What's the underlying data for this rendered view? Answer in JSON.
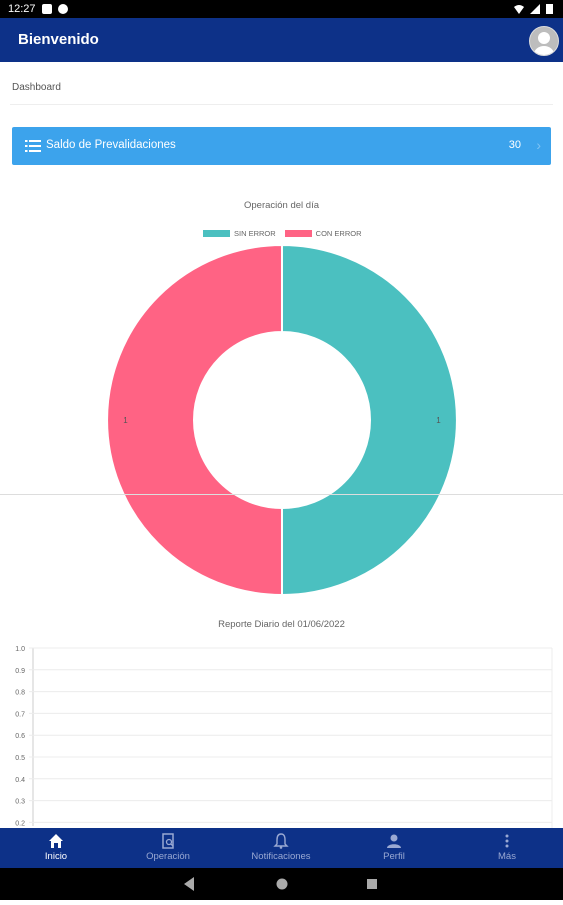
{
  "status_bar": {
    "time": "12:27"
  },
  "appbar": {
    "title": "Bienvenido"
  },
  "breadcrumb": "Dashboard",
  "summary_card": {
    "label": "Saldo de Prevalidaciones",
    "count": "30"
  },
  "chart_data": [
    {
      "type": "pie",
      "title": "Operación del día",
      "categories": [
        "SIN ERROR",
        "CON ERROR"
      ],
      "values": [
        1,
        1
      ],
      "colors": [
        "#4bc0c0",
        "#ff6384"
      ],
      "legend_placement": "top"
    },
    {
      "type": "bar",
      "title": "Reporte Diario del 01/06/2022",
      "categories": [],
      "values": [],
      "yticks": [
        "1.0",
        "0.9",
        "0.8",
        "0.7",
        "0.6",
        "0.5",
        "0.4",
        "0.3",
        "0.2"
      ],
      "ylim": [
        0,
        1.0
      ],
      "grid": true
    }
  ],
  "bottom_nav": {
    "items": [
      {
        "label": "Inicio",
        "icon": "home-icon",
        "active": true
      },
      {
        "label": "Operación",
        "icon": "clipboard-search-icon",
        "active": false
      },
      {
        "label": "Notificaciones",
        "icon": "bell-icon",
        "active": false
      },
      {
        "label": "Perfil",
        "icon": "person-icon",
        "active": false
      },
      {
        "label": "Más",
        "icon": "more-vertical-icon",
        "active": false
      }
    ]
  },
  "colors": {
    "primary": "#0d3188",
    "card": "#3ca3ec"
  }
}
